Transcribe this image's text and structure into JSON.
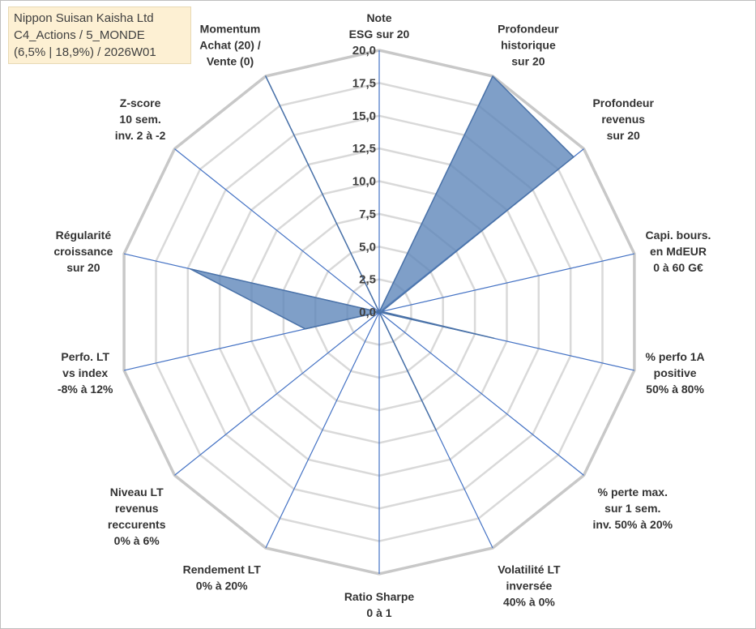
{
  "info_box": {
    "line1": "Nippon Suisan Kaisha Ltd",
    "line2": "C4_Actions / 5_MONDE",
    "line3": "(6,5% | 18,9%) / 2026W01"
  },
  "chart_data": {
    "type": "radar",
    "title": "",
    "r_min": 0,
    "r_max": 20,
    "tick_step": 2.5,
    "tick_labels": [
      "0,0",
      "2,5",
      "5,0",
      "7,5",
      "10,0",
      "12,5",
      "15,0",
      "17,5",
      "20,0"
    ],
    "axes": [
      {
        "label": [
          "Note",
          "ESG sur 20"
        ],
        "value": 0
      },
      {
        "label": [
          "Profondeur",
          "historique",
          "sur 20"
        ],
        "value": 20
      },
      {
        "label": [
          "Profondeur",
          "revenus",
          "sur 20"
        ],
        "value": 19
      },
      {
        "label": [
          "Capi. bours.",
          "en MdEUR",
          "0 à 60 G€"
        ],
        "value": 0.2
      },
      {
        "label": [
          "% perfo 1A",
          "positive",
          "50% à 80%"
        ],
        "value": 9
      },
      {
        "label": [
          "% perte max.",
          "sur 1 sem.",
          "inv. 50% à 20%"
        ],
        "value": 0
      },
      {
        "label": [
          "Volatilité LT",
          "inversée",
          "40% à 0%"
        ],
        "value": 10
      },
      {
        "label": [
          "Ratio Sharpe",
          "0 à 1"
        ],
        "value": 0
      },
      {
        "label": [
          "Rendement LT",
          "0% à 20%"
        ],
        "value": 0
      },
      {
        "label": [
          "Niveau LT",
          "revenus",
          "reccurents",
          "0% à 6%"
        ],
        "value": 0
      },
      {
        "label": [
          "Perfo. LT",
          "vs index",
          "-8% à 12%"
        ],
        "value": 5.8
      },
      {
        "label": [
          "Régularité",
          "croissance",
          "sur 20"
        ],
        "value": 14.8
      },
      {
        "label": [
          "Z-score",
          "10 sem.",
          "inv. 2 à -2"
        ],
        "value": 0
      },
      {
        "label": [
          "Momentum",
          "Achat (20) /",
          "Vente (0)"
        ],
        "value": 20
      }
    ],
    "series": [
      {
        "name": "Nippon Suisan Kaisha Ltd",
        "color": "#5b84b8"
      }
    ],
    "grid": true
  }
}
